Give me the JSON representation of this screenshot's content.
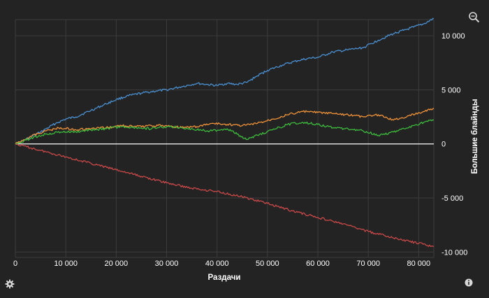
{
  "toolbar": {
    "zoom_icon": "zoom-magnifier-icon",
    "settings_icon": "gear-icon",
    "info_icon": "info-icon"
  },
  "colors": {
    "background": "#232323",
    "grid": "#3c3c3c",
    "zero_line": "#ffffff",
    "text": "#ffffff"
  },
  "chart_data": {
    "type": "line",
    "title": "",
    "xlabel": "Раздачи",
    "ylabel": "Большие блайнды",
    "xlim": [
      0,
      83000
    ],
    "ylim": [
      -10500,
      11500
    ],
    "x_ticks": [
      0,
      10000,
      20000,
      30000,
      40000,
      50000,
      60000,
      70000,
      80000
    ],
    "x_tick_labels": [
      "0",
      "10 000",
      "20 000",
      "30 000",
      "40 000",
      "50 000",
      "60 000",
      "70 000",
      "80 000"
    ],
    "y_ticks": [
      10000,
      5000,
      0,
      -5000,
      -10000
    ],
    "y_tick_labels": [
      "10 000",
      "5 000",
      "0",
      "-5 000",
      "-10 000"
    ],
    "y_axis_side": "right",
    "grid": true,
    "series": [
      {
        "color": "#4a8fd0",
        "x": [
          0,
          2000,
          5000,
          8000,
          10000,
          12000,
          15000,
          18000,
          20000,
          22000,
          25000,
          28000,
          30000,
          33000,
          36000,
          38000,
          40000,
          42000,
          44000,
          46000,
          48000,
          50000,
          53000,
          56000,
          58000,
          60000,
          63000,
          66000,
          69000,
          72000,
          75000,
          77000,
          79000,
          81000,
          83000
        ],
        "values": [
          0,
          400,
          1100,
          1900,
          2300,
          2500,
          3100,
          3700,
          4100,
          4400,
          4700,
          4900,
          5000,
          5300,
          5600,
          5500,
          5400,
          5600,
          5500,
          5700,
          6300,
          6800,
          7300,
          7700,
          7900,
          8000,
          8500,
          8700,
          8900,
          9600,
          10200,
          10500,
          10800,
          11100,
          11600
        ]
      },
      {
        "color": "#f0923a",
        "x": [
          0,
          3000,
          6000,
          9000,
          12000,
          15000,
          18000,
          21000,
          24000,
          27000,
          30000,
          33000,
          36000,
          39000,
          42000,
          45000,
          48000,
          51000,
          54000,
          57000,
          60000,
          63000,
          66000,
          69000,
          72000,
          75000,
          78000,
          81000,
          83000
        ],
        "values": [
          0,
          700,
          1200,
          1500,
          1300,
          1400,
          1500,
          1700,
          1600,
          1700,
          1700,
          1500,
          1600,
          1900,
          1800,
          1700,
          1900,
          2300,
          2700,
          3000,
          2900,
          2800,
          2700,
          2500,
          2700,
          2200,
          2600,
          3000,
          3300
        ]
      },
      {
        "color": "#3dbb3d",
        "x": [
          0,
          3000,
          6000,
          9000,
          12000,
          15000,
          18000,
          21000,
          24000,
          27000,
          30000,
          33000,
          36000,
          39000,
          42000,
          44000,
          46000,
          48000,
          51000,
          54000,
          57000,
          60000,
          63000,
          66000,
          69000,
          72000,
          75000,
          78000,
          81000,
          83000
        ],
        "values": [
          0,
          500,
          900,
          1100,
          1100,
          1300,
          1400,
          1600,
          1500,
          1400,
          1600,
          1500,
          1300,
          1200,
          1400,
          900,
          400,
          800,
          1300,
          1800,
          2000,
          1800,
          1500,
          1400,
          1200,
          800,
          1100,
          1500,
          2000,
          2200
        ]
      },
      {
        "color": "#c94848",
        "x": [
          0,
          5000,
          10000,
          15000,
          20000,
          25000,
          30000,
          35000,
          40000,
          45000,
          50000,
          55000,
          60000,
          65000,
          70000,
          75000,
          80000,
          83000
        ],
        "values": [
          0,
          -600,
          -1200,
          -1800,
          -2400,
          -3000,
          -3600,
          -4100,
          -4400,
          -4900,
          -5500,
          -6200,
          -6800,
          -7400,
          -8100,
          -8700,
          -9200,
          -9500
        ]
      }
    ]
  }
}
